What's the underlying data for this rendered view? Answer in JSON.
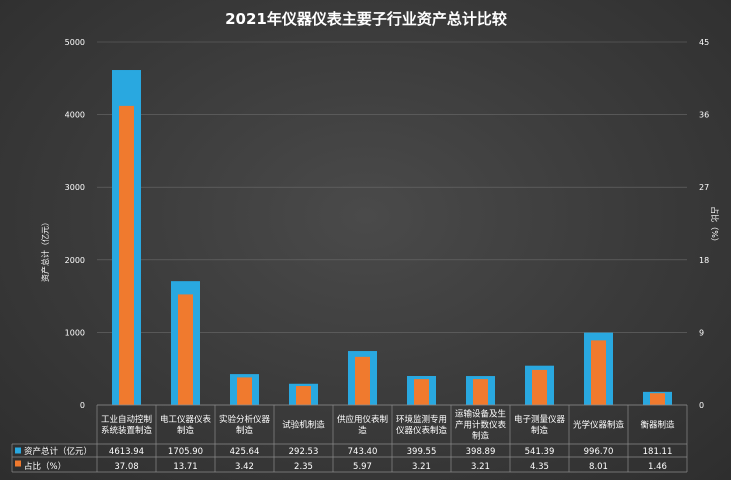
{
  "chart_data": {
    "type": "bar",
    "title": "2021年仪器仪表主要子行业资产总计比较",
    "ylabel": "资产总计（亿元）",
    "y2label": "占比（%）",
    "ylim": [
      0,
      5000
    ],
    "y2lim": [
      0,
      45
    ],
    "yticks": [
      "0",
      "1000",
      "2000",
      "3000",
      "4000",
      "5000"
    ],
    "y2ticks": [
      "0",
      "9",
      "18",
      "27",
      "36",
      "45"
    ],
    "categories": [
      "工业自动控制系统装置制造",
      "电工仪器仪表制造",
      "实验分析仪器制造",
      "试验机制造",
      "供应用仪表制造",
      "环境监测专用仪器仪表制造",
      "运输设备及生产用计数仪表制造",
      "电子测量仪器制造",
      "光学仪器制造",
      "衡器制造"
    ],
    "series": [
      {
        "name": "资产总计（亿元）",
        "axis": "left",
        "color": "#29a8e0",
        "values": [
          4613.94,
          1705.9,
          425.64,
          292.53,
          743.4,
          399.55,
          398.89,
          541.39,
          996.7,
          181.11
        ],
        "labels": [
          "4613.94",
          "1705.90",
          "425.64",
          "292.53",
          "743.40",
          "399.55",
          "398.89",
          "541.39",
          "996.70",
          "181.11"
        ]
      },
      {
        "name": "占比（%）",
        "axis": "right",
        "color": "#f07a2e",
        "values": [
          37.08,
          13.71,
          3.42,
          2.35,
          5.97,
          3.21,
          3.21,
          4.35,
          8.01,
          1.46
        ],
        "labels": [
          "37.08",
          "13.71",
          "3.42",
          "2.35",
          "5.97",
          "3.21",
          "3.21",
          "4.35",
          "8.01",
          "1.46"
        ]
      }
    ],
    "legend": "data-table-rows",
    "grid": true
  }
}
